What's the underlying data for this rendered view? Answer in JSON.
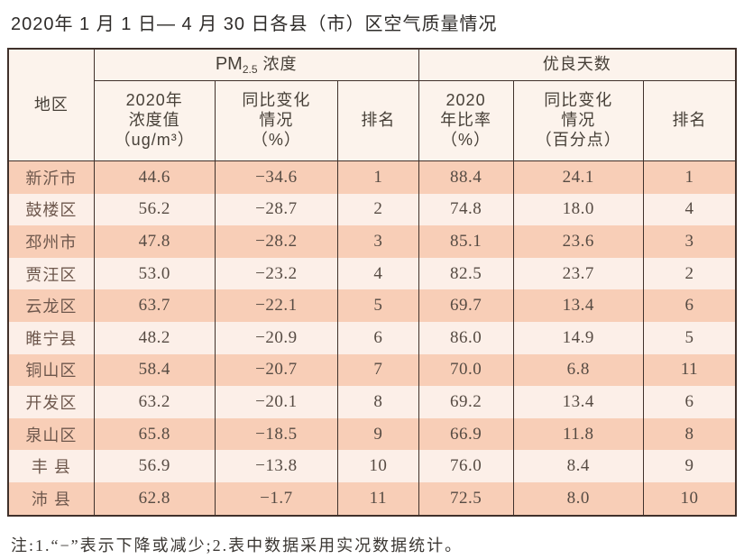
{
  "title": "2020年 1 月 1 日— 4 月 30 日各县（市）区空气质量情况",
  "colors": {
    "border": "#40312b",
    "header_bg": "#fcf3ec",
    "row_odd_bg": "#f8ceb7",
    "row_even_bg": "#fcefe8",
    "region_text": "#6d574c",
    "data_text": "#564b43"
  },
  "table": {
    "region_header": "地区",
    "group_pm": {
      "prefix": "PM",
      "sub": "2.5",
      "suffix": " 浓度"
    },
    "group_good": "优良天数",
    "sub_headers": {
      "pm_value": "2020年\n浓度值\n（ug/m³）",
      "pm_change": "同比变化\n情况\n（%）",
      "pm_rank": "排名",
      "good_ratio": "2020\n年比率\n（%）",
      "good_change": "同比变化\n情况\n（百分点）",
      "good_rank": "排名"
    },
    "rows": [
      {
        "region": "新沂市",
        "pm_value": "44.6",
        "pm_change": "−34.6",
        "pm_rank": "1",
        "good_ratio": "88.4",
        "good_change": "24.1",
        "good_rank": "1"
      },
      {
        "region": "鼓楼区",
        "pm_value": "56.2",
        "pm_change": "−28.7",
        "pm_rank": "2",
        "good_ratio": "74.8",
        "good_change": "18.0",
        "good_rank": "4"
      },
      {
        "region": "邳州市",
        "pm_value": "47.8",
        "pm_change": "−28.2",
        "pm_rank": "3",
        "good_ratio": "85.1",
        "good_change": "23.6",
        "good_rank": "3"
      },
      {
        "region": "贾汪区",
        "pm_value": "53.0",
        "pm_change": "−23.2",
        "pm_rank": "4",
        "good_ratio": "82.5",
        "good_change": "23.7",
        "good_rank": "2"
      },
      {
        "region": "云龙区",
        "pm_value": "63.7",
        "pm_change": "−22.1",
        "pm_rank": "5",
        "good_ratio": "69.7",
        "good_change": "13.4",
        "good_rank": "6"
      },
      {
        "region": "睢宁县",
        "pm_value": "48.2",
        "pm_change": "−20.9",
        "pm_rank": "6",
        "good_ratio": "86.0",
        "good_change": "14.9",
        "good_rank": "5"
      },
      {
        "region": "铜山区",
        "pm_value": "58.4",
        "pm_change": "−20.7",
        "pm_rank": "7",
        "good_ratio": "70.0",
        "good_change": "6.8",
        "good_rank": "11"
      },
      {
        "region": "开发区",
        "pm_value": "63.2",
        "pm_change": "−20.1",
        "pm_rank": "8",
        "good_ratio": "69.2",
        "good_change": "13.4",
        "good_rank": "6"
      },
      {
        "region": "泉山区",
        "pm_value": "65.8",
        "pm_change": "−18.5",
        "pm_rank": "9",
        "good_ratio": "66.9",
        "good_change": "11.8",
        "good_rank": "8"
      },
      {
        "region": "丰 县",
        "pm_value": "56.9",
        "pm_change": "−13.8",
        "pm_rank": "10",
        "good_ratio": "76.0",
        "good_change": "8.4",
        "good_rank": "9"
      },
      {
        "region": "沛 县",
        "pm_value": "62.8",
        "pm_change": "−1.7",
        "pm_rank": "11",
        "good_ratio": "72.5",
        "good_change": "8.0",
        "good_rank": "10"
      }
    ]
  },
  "footnote": "注:1.“−”表示下降或减少;2.表中数据采用实况数据统计。"
}
